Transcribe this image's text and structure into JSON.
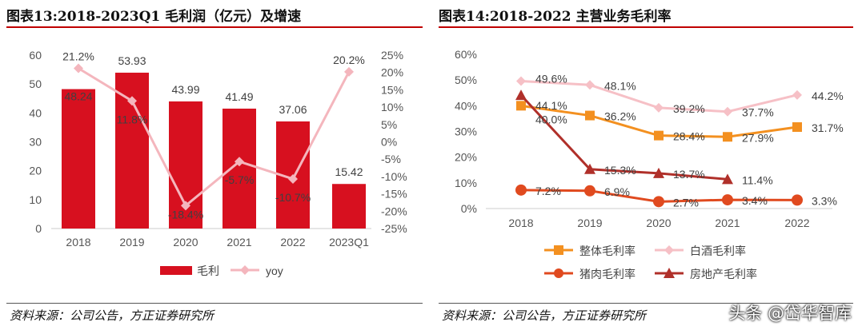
{
  "left": {
    "title": "图表13:2018-2023Q1 毛利润（亿元）及增速",
    "source": "资料来源：公司公告，方正证券研究所"
  },
  "right": {
    "title": "图表14:2018-2022 主营业务毛利率",
    "source": "资料来源：公司公告，方正证券研究所"
  },
  "watermark": "头条 @岱华智库",
  "colors": {
    "bar": "#d7101f",
    "yoy": "#f4b6bd",
    "overall": "#f39020",
    "baijiu": "#f6c0c6",
    "pork": "#e04a1f",
    "realestate": "#b0302a",
    "accent": "#c00000"
  },
  "chart_data": [
    {
      "type": "bar",
      "categories": [
        "2018",
        "2019",
        "2020",
        "2021",
        "2022",
        "2023Q1"
      ],
      "series": [
        {
          "name": "毛利",
          "type": "bar",
          "axis": "left",
          "values": [
            48.24,
            53.93,
            43.99,
            41.49,
            37.06,
            15.42
          ],
          "labels": [
            "48.24",
            "53.93",
            "43.99",
            "41.49",
            "37.06",
            "15.42"
          ]
        },
        {
          "name": "yoy",
          "type": "line",
          "axis": "right",
          "values": [
            21.2,
            11.8,
            -18.4,
            -5.7,
            -10.7,
            20.2
          ],
          "labels": [
            "21.2%",
            "11.8%",
            "-18.4%",
            "-5.7%",
            "-10.7%",
            "20.2%"
          ]
        }
      ],
      "ylim": [
        0,
        60
      ],
      "yticks": [
        "0",
        "10",
        "20",
        "30",
        "40",
        "50",
        "60"
      ],
      "y2lim": [
        -25,
        25
      ],
      "y2ticks": [
        "-25%",
        "-20%",
        "-15%",
        "-10%",
        "-5%",
        "0%",
        "5%",
        "10%",
        "15%",
        "20%",
        "25%"
      ],
      "legend": "bottom",
      "grid": false
    },
    {
      "type": "line",
      "categories": [
        "2018",
        "2019",
        "2020",
        "2021",
        "2022"
      ],
      "series": [
        {
          "name": "整体毛利率",
          "marker": "square",
          "values": [
            40.0,
            36.2,
            28.4,
            27.9,
            31.7
          ],
          "labels": [
            "40.0%",
            "36.2%",
            "28.4%",
            "27.9%",
            "31.7%"
          ]
        },
        {
          "name": "白酒毛利率",
          "marker": "diamond",
          "values": [
            49.6,
            48.1,
            39.2,
            37.7,
            44.2
          ],
          "labels": [
            "49.6%",
            "48.1%",
            "39.2%",
            "37.7%",
            "44.2%"
          ]
        },
        {
          "name": "猪肉毛利率",
          "marker": "circle",
          "values": [
            7.2,
            6.9,
            2.7,
            3.4,
            3.3
          ],
          "labels": [
            "7.2%",
            "6.9%",
            "2.7%",
            "3.4%",
            "3.3%"
          ]
        },
        {
          "name": "房地产毛利率",
          "marker": "triangle",
          "values": [
            44.1,
            15.3,
            13.7,
            11.4,
            null
          ],
          "labels": [
            "44.1%",
            "15.3%",
            "13.7%",
            "11.4%",
            ""
          ]
        }
      ],
      "ylim": [
        0,
        60
      ],
      "yticks": [
        "0%",
        "10%",
        "20%",
        "30%",
        "40%",
        "50%",
        "60%"
      ],
      "legend": "bottom",
      "grid": false
    }
  ]
}
